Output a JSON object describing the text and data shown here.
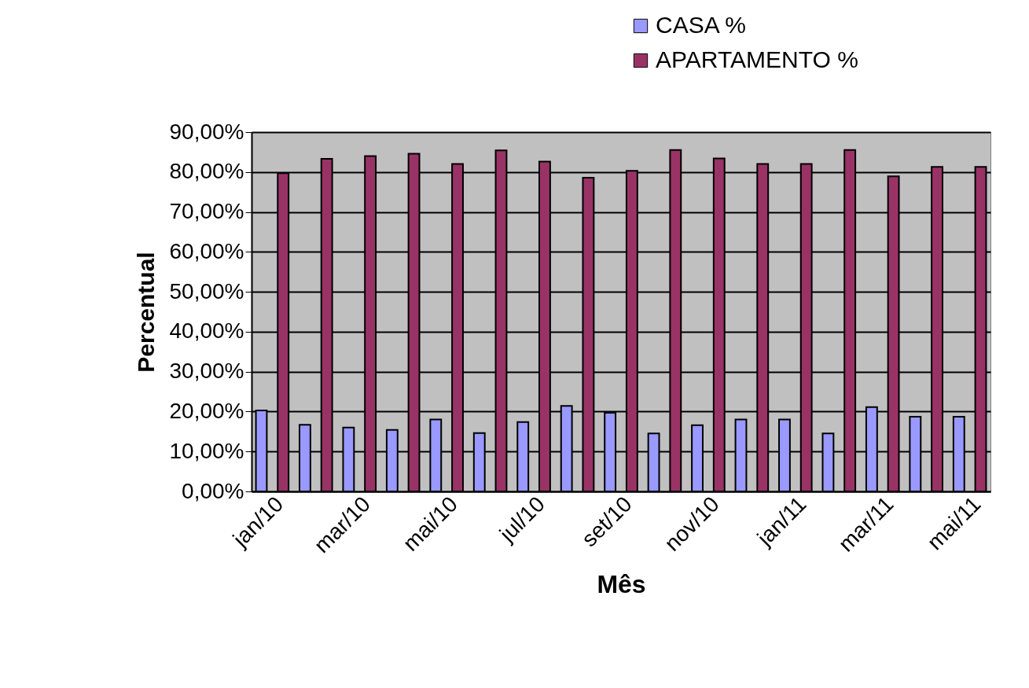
{
  "chart_data": {
    "type": "bar",
    "xlabel": "Mês",
    "ylabel": "Percentual",
    "categories": [
      "jan/10",
      null,
      "mar/10",
      null,
      "mai/10",
      null,
      "jul/10",
      null,
      "set/10",
      null,
      "nov/10",
      null,
      "jan/11",
      null,
      "mar/11",
      null,
      "mai/11"
    ],
    "series": [
      {
        "name": "CASA %",
        "color": "#9999ff",
        "values": [
          20.3,
          16.7,
          16.0,
          15.4,
          18.0,
          14.6,
          17.4,
          21.4,
          19.7,
          14.5,
          16.6,
          18.0,
          18.0,
          14.5,
          21.1,
          18.7,
          18.7
        ]
      },
      {
        "name": "APARTAMENTO %",
        "color": "#993366",
        "values": [
          79.7,
          83.3,
          84.0,
          84.6,
          82.0,
          85.4,
          82.6,
          78.6,
          80.3,
          85.5,
          83.4,
          82.0,
          82.0,
          85.5,
          78.9,
          81.3,
          81.3
        ]
      }
    ],
    "ylim": [
      0,
      90
    ],
    "yticks": [
      {
        "value": 0,
        "label": "0,00%"
      },
      {
        "value": 10,
        "label": "10,00%"
      },
      {
        "value": 20,
        "label": "20,00%"
      },
      {
        "value": 30,
        "label": "30,00%"
      },
      {
        "value": 40,
        "label": "40,00%"
      },
      {
        "value": 50,
        "label": "50,00%"
      },
      {
        "value": 60,
        "label": "60,00%"
      },
      {
        "value": 70,
        "label": "70,00%"
      },
      {
        "value": 80,
        "label": "80,00%"
      },
      {
        "value": 90,
        "label": "90,00%"
      }
    ],
    "grid": "y",
    "legend": "top right"
  }
}
